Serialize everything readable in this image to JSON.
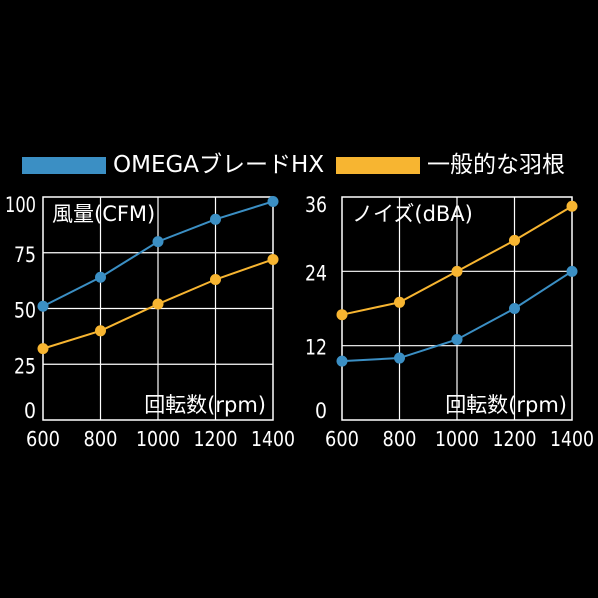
{
  "legend": {
    "items": [
      {
        "label": "OMEGAブレードHX",
        "color": "#3b8fc4"
      },
      {
        "label": "一般的な羽根",
        "color": "#f7b531"
      }
    ]
  },
  "chart_data": [
    {
      "type": "line",
      "title": "風量(CFM)",
      "xlabel": "回転数(rpm)",
      "ylabel": "",
      "x": [
        600,
        800,
        1000,
        1200,
        1400
      ],
      "x_ticks": [
        "600",
        "800",
        "1000",
        "1200",
        "1400"
      ],
      "y_ticks": [
        "0",
        "25",
        "50",
        "75",
        "100"
      ],
      "xlim": [
        600,
        1400
      ],
      "ylim": [
        0,
        100
      ],
      "grid": true,
      "series": [
        {
          "name": "OMEGAブレードHX",
          "color": "#3b8fc4",
          "values": [
            51,
            64,
            80,
            90,
            98
          ]
        },
        {
          "name": "一般的な羽根",
          "color": "#f7b531",
          "values": [
            32,
            40,
            52,
            63,
            72
          ]
        }
      ]
    },
    {
      "type": "line",
      "title": "ノイズ(dBA)",
      "xlabel": "回転数(rpm)",
      "ylabel": "",
      "x": [
        600,
        800,
        1000,
        1200,
        1400
      ],
      "x_ticks": [
        "600",
        "800",
        "1000",
        "1200",
        "1400"
      ],
      "y_ticks": [
        "0",
        "12",
        "24",
        "36"
      ],
      "xlim": [
        600,
        1400
      ],
      "ylim": [
        0,
        36
      ],
      "grid": true,
      "series": [
        {
          "name": "OMEGAブレードHX",
          "color": "#3b8fc4",
          "values": [
            9.5,
            10,
            13,
            18,
            24
          ]
        },
        {
          "name": "一般的な羽根",
          "color": "#f7b531",
          "values": [
            17,
            19,
            24,
            29,
            34.5
          ]
        }
      ]
    }
  ]
}
